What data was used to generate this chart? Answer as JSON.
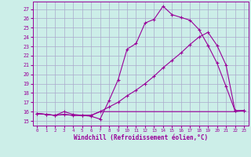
{
  "xlabel": "Windchill (Refroidissement éolien,°C)",
  "bg_color": "#cceee8",
  "grid_color": "#aaaacc",
  "line_color": "#990099",
  "xlim": [
    -0.5,
    23.5
  ],
  "ylim": [
    14.5,
    27.8
  ],
  "yticks": [
    15,
    16,
    17,
    18,
    19,
    20,
    21,
    22,
    23,
    24,
    25,
    26,
    27
  ],
  "xticks": [
    0,
    1,
    2,
    3,
    4,
    5,
    6,
    7,
    8,
    9,
    10,
    11,
    12,
    13,
    14,
    15,
    16,
    17,
    18,
    19,
    20,
    21,
    22,
    23
  ],
  "series1_x": [
    0,
    1,
    2,
    3,
    4,
    5,
    6,
    7,
    8,
    9,
    10,
    11,
    12,
    13,
    14,
    15,
    16,
    17,
    18,
    19,
    20,
    21,
    22,
    23
  ],
  "series1_y": [
    15.8,
    15.7,
    15.6,
    16.0,
    15.7,
    15.6,
    15.5,
    15.2,
    17.2,
    19.4,
    22.7,
    23.3,
    25.5,
    25.9,
    27.3,
    26.4,
    26.1,
    25.8,
    24.8,
    23.1,
    21.2,
    18.7,
    16.1,
    16.1
  ],
  "series2_x": [
    0,
    1,
    2,
    3,
    4,
    5,
    6,
    7,
    8,
    9,
    10,
    11,
    12,
    13,
    14,
    15,
    16,
    17,
    18,
    19,
    20,
    21,
    22,
    23
  ],
  "series2_y": [
    15.8,
    15.7,
    15.6,
    15.7,
    15.6,
    15.6,
    15.6,
    16.0,
    16.5,
    17.0,
    17.7,
    18.3,
    19.0,
    19.8,
    20.7,
    21.5,
    22.3,
    23.2,
    24.0,
    24.5,
    23.1,
    21.0,
    16.1,
    16.1
  ],
  "series3_x": [
    0,
    1,
    2,
    3,
    4,
    5,
    6,
    7,
    16,
    17,
    18,
    19,
    20,
    21,
    22,
    23
  ],
  "series3_y": [
    15.8,
    15.7,
    15.6,
    15.7,
    15.6,
    15.6,
    15.6,
    16.0,
    16.0,
    16.0,
    16.0,
    16.0,
    16.0,
    16.0,
    16.0,
    16.1
  ]
}
